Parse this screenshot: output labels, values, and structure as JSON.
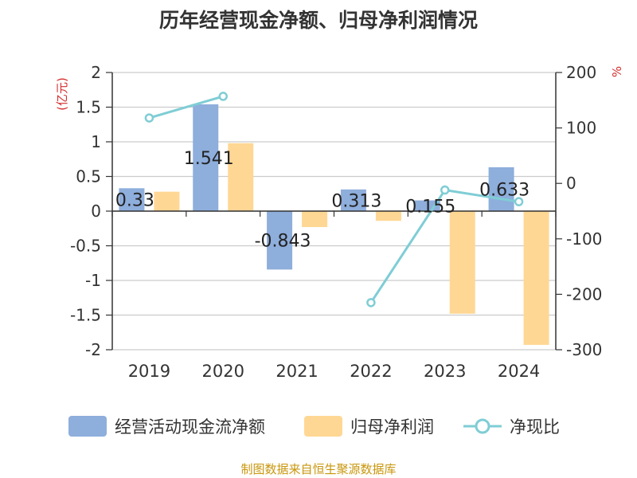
{
  "title": "历年经营现金净额、归母净利润情况",
  "source": "制图数据来自恒生聚源数据库",
  "colors": {
    "cashflow": "#8eaedc",
    "profit": "#ffd794",
    "ratio": "#7fcdd5",
    "axis_unit": "#d42d2d",
    "source": "#c8960c"
  },
  "legend": {
    "cashflow": "经营活动现金流净额",
    "profit": "归母净利润",
    "ratio": "净现比"
  },
  "chart_data": {
    "type": "bar",
    "title": "历年经营现金净额、归母净利润情况",
    "categories": [
      "2019",
      "2020",
      "2021",
      "2022",
      "2023",
      "2024"
    ],
    "ylabel": "(亿元)",
    "y2label": "%",
    "ylim": [
      -2,
      2
    ],
    "y2lim": [
      -300,
      200
    ],
    "y_ticks": [
      "2",
      "1.5",
      "1",
      "0.5",
      "0",
      "-0.5",
      "-1",
      "-1.5",
      "-2"
    ],
    "y2_ticks": [
      "200",
      "100",
      "0",
      "-100",
      "-200",
      "-300"
    ],
    "series": [
      {
        "name": "经营活动现金流净额",
        "type": "bar",
        "axis": "left",
        "values": [
          0.33,
          1.541,
          -0.843,
          0.313,
          0.155,
          0.633
        ],
        "labels": [
          "0.33",
          "1.541",
          "-0.843",
          "0.313",
          "0.155",
          "0.633"
        ]
      },
      {
        "name": "归母净利润",
        "type": "bar",
        "axis": "left",
        "values": [
          0.28,
          0.98,
          -0.23,
          -0.14,
          -1.48,
          -1.93
        ]
      },
      {
        "name": "净现比",
        "type": "line",
        "axis": "right",
        "values": [
          118,
          157,
          null,
          -215,
          -12,
          -33
        ]
      }
    ]
  }
}
